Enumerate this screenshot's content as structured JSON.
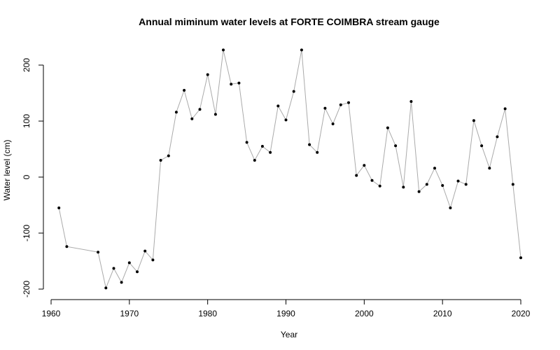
{
  "chart_data": {
    "type": "line",
    "title": "Annual miminum water levels at FORTE COIMBRA stream gauge",
    "xlabel": "Year",
    "ylabel": "Water level (cm)",
    "xlim": [
      1960,
      2020
    ],
    "ylim": [
      -200,
      200
    ],
    "xticks": [
      1960,
      1970,
      1980,
      1990,
      2000,
      2010,
      2020
    ],
    "yticks": [
      -200,
      -100,
      0,
      100,
      200
    ],
    "grid": false,
    "colors": {
      "line": "#aaaaaa",
      "point": "#000000"
    },
    "series": [
      {
        "x": [
          1961,
          1962,
          1966,
          1967,
          1968,
          1969,
          1970,
          1971,
          1972,
          1973,
          1974,
          1975,
          1976,
          1977,
          1978,
          1979,
          1980,
          1981,
          1982,
          1983,
          1984,
          1985,
          1986,
          1987,
          1988,
          1989,
          1990,
          1991,
          1992,
          1993,
          1994,
          1995,
          1996,
          1997,
          1998,
          1999,
          2000,
          2001,
          2002,
          2003,
          2004,
          2005,
          2006,
          2007,
          2008,
          2009,
          2010,
          2011,
          2012,
          2013,
          2014,
          2015,
          2016,
          2017,
          2018,
          2019,
          2020
        ],
        "y": [
          -55,
          -124,
          -134,
          -198,
          -163,
          -188,
          -153,
          -169,
          -132,
          -148,
          30,
          38,
          116,
          155,
          104,
          121,
          183,
          112,
          227,
          166,
          168,
          62,
          30,
          55,
          44,
          127,
          102,
          153,
          227,
          58,
          44,
          123,
          95,
          129,
          133,
          3,
          21,
          -6,
          -16,
          88,
          56,
          -18,
          135,
          -26,
          -13,
          16,
          -15,
          -55,
          -7,
          -13,
          101,
          56,
          16,
          72,
          122,
          -13,
          -144
        ]
      }
    ]
  }
}
